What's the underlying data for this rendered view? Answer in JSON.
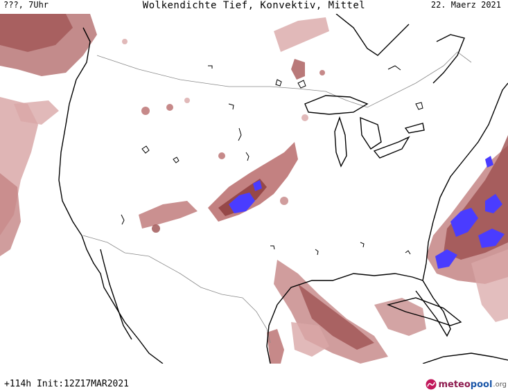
{
  "header": {
    "left_label": "???, 7Uhr",
    "title": "Wolkendichte  Tief, Konvektiv, Mittel",
    "date": "22. Maerz 2021"
  },
  "footer": {
    "init_label": "+114h  Init:12Z17MAR2021"
  },
  "logo": {
    "meteo": "meteo",
    "pool": "pool",
    "org": ".org"
  },
  "colors": {
    "cloud_light": "#d9a8a8",
    "cloud_mid": "#b86b6b",
    "cloud_dark": "#8b3a3a",
    "convective": "#4a3cff",
    "coastline": "#000000",
    "border": "#888888"
  }
}
